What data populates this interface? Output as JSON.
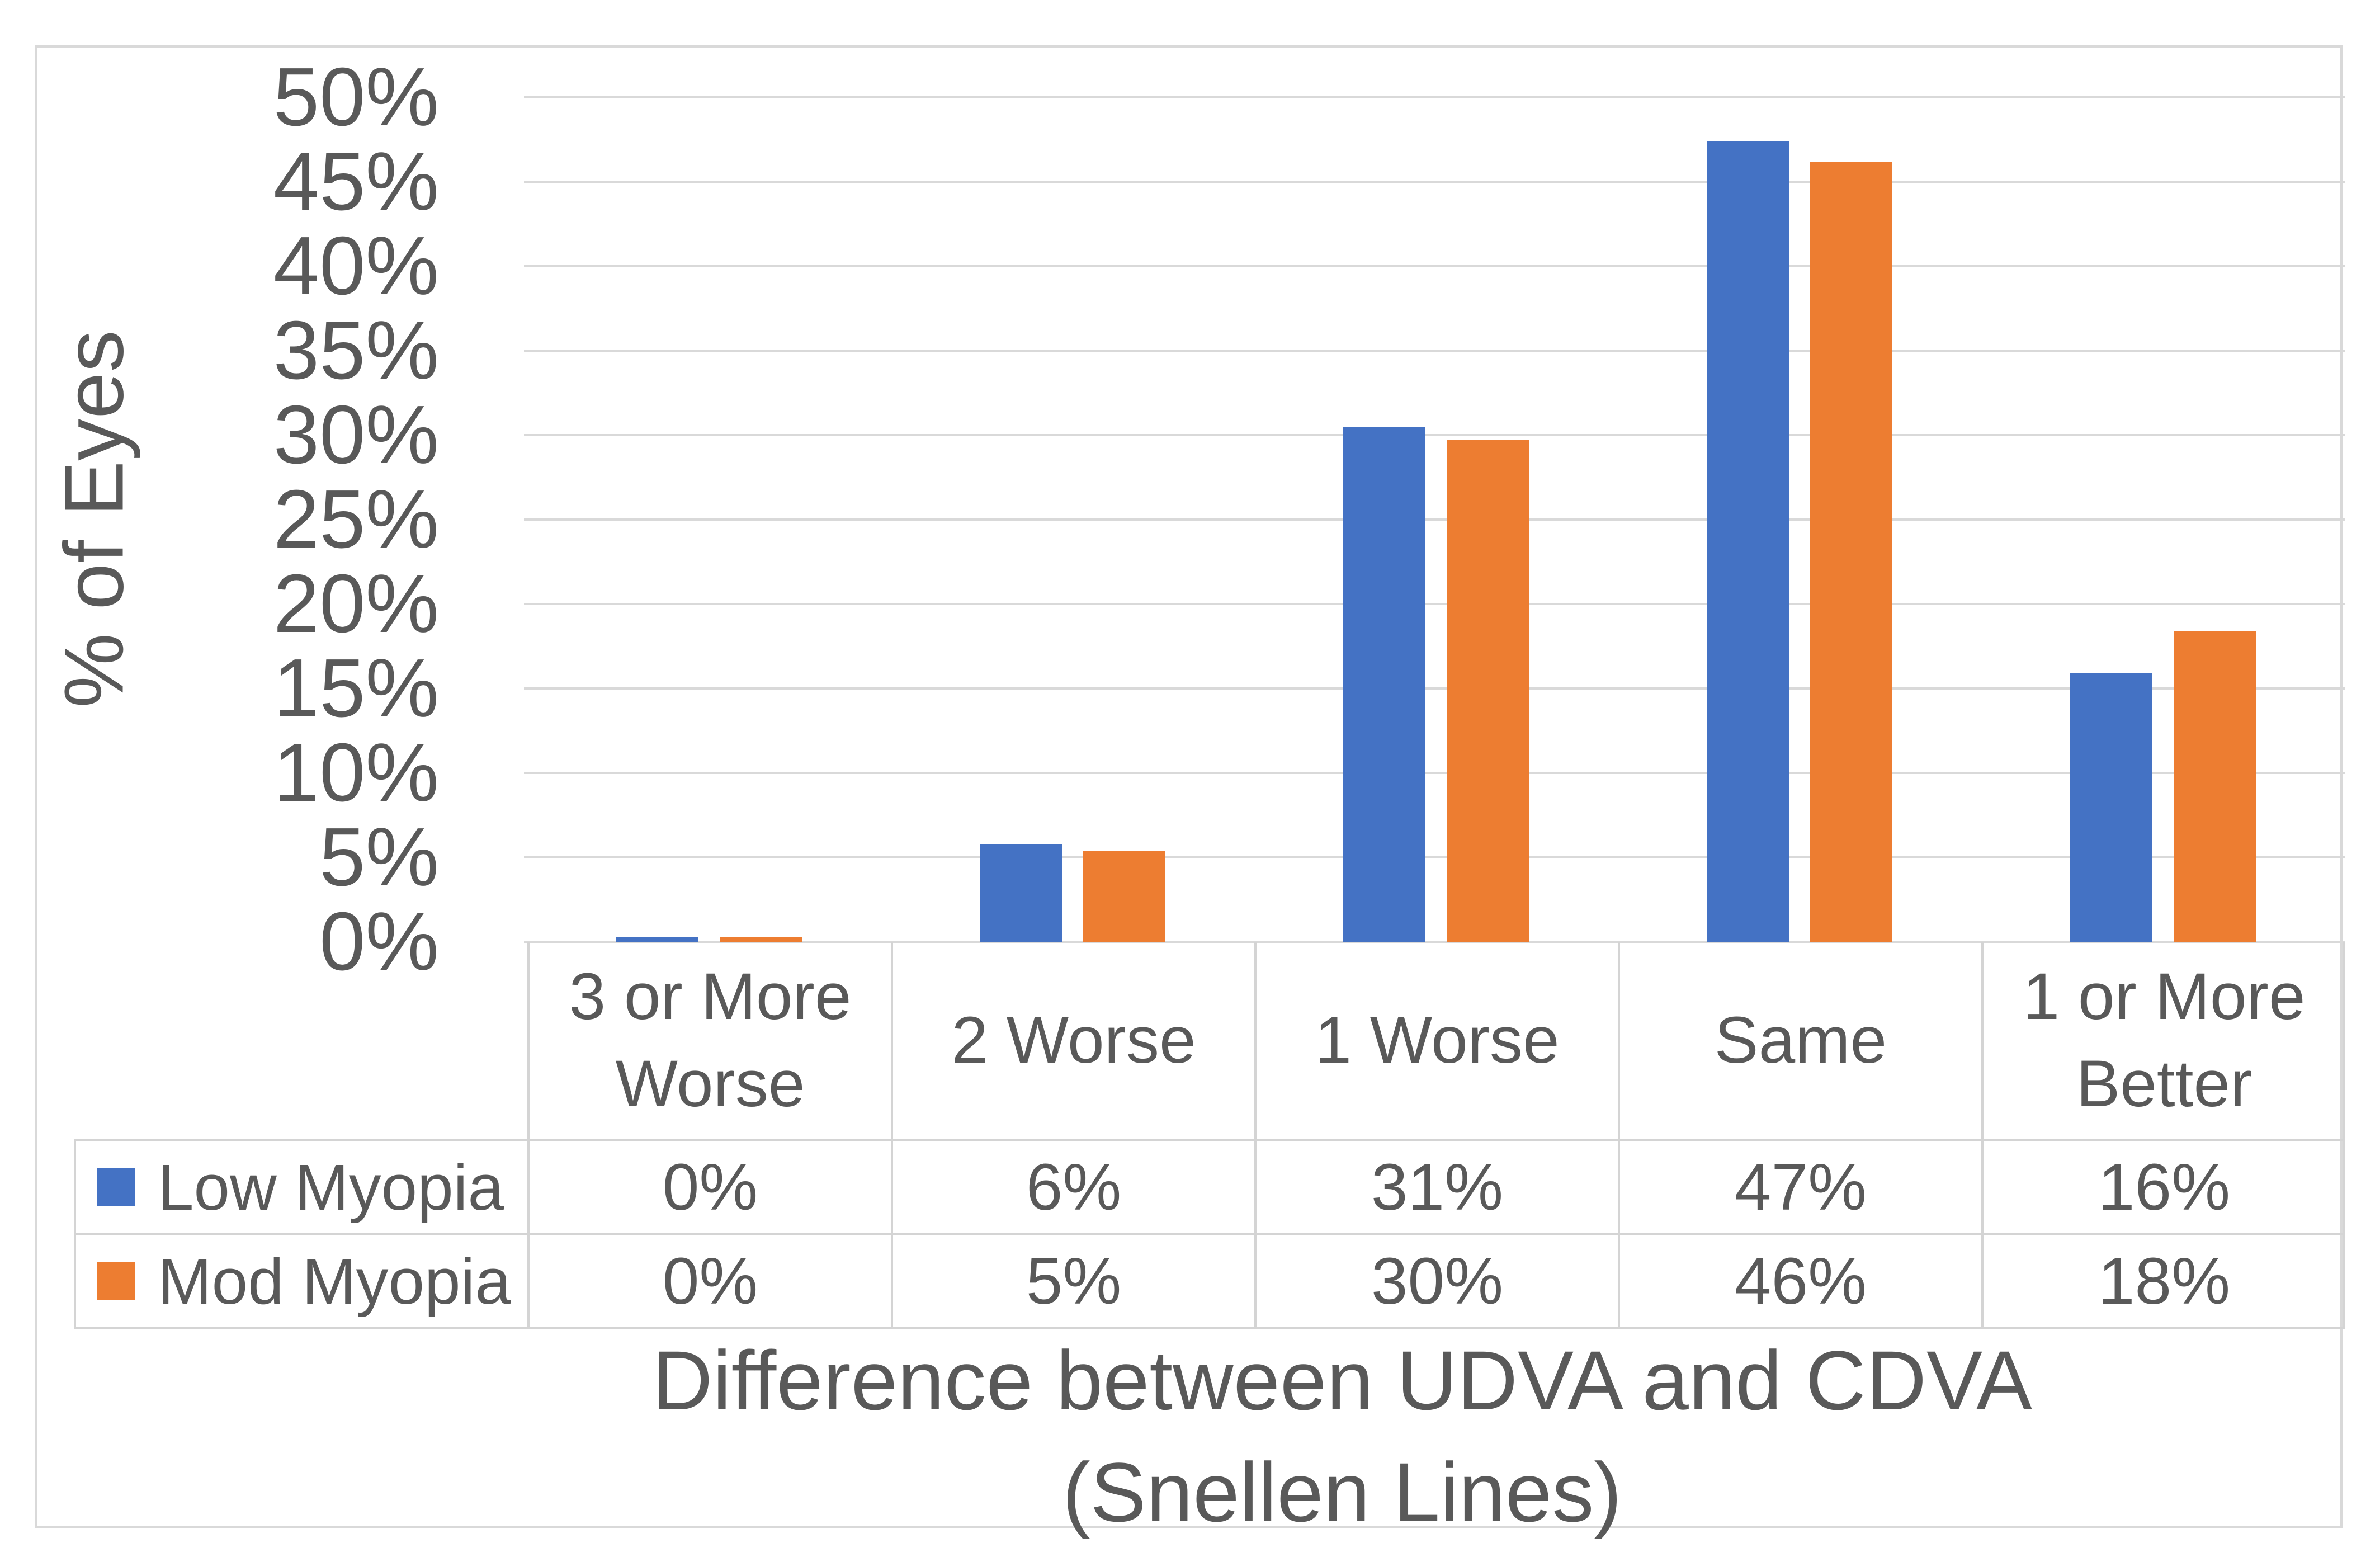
{
  "chart_data": {
    "type": "bar",
    "categories": [
      "3 or More Worse",
      "2 Worse",
      "1 Worse",
      "Same",
      "1 or More Better"
    ],
    "series": [
      {
        "name": "Low Myopia",
        "color": "#4472C4",
        "values": [
          0,
          6,
          31,
          47,
          16
        ]
      },
      {
        "name": "Mod Myopia",
        "color": "#ED7D31",
        "values": [
          0,
          5,
          30,
          46,
          18
        ]
      }
    ],
    "bar_heights_precise_pct": [
      [
        0.3,
        5.8,
        30.5,
        47.4,
        15.9
      ],
      [
        0.3,
        5.4,
        29.7,
        46.2,
        18.4
      ]
    ],
    "title": "",
    "xlabel": "Difference between UDVA and CDVA (Snellen Lines)",
    "ylabel": "% of Eyes",
    "ylim": [
      0,
      50
    ],
    "y_tick_step": 5,
    "grid": "horizontal",
    "legend_position": "data-table-left"
  },
  "ui": {
    "y_axis_title": "% of Eyes",
    "y_tick_labels": [
      "50%",
      "45%",
      "40%",
      "35%",
      "30%",
      "25%",
      "20%",
      "15%",
      "10%",
      "5%",
      "0%"
    ],
    "x_axis_title_line1": "Difference between UDVA and CDVA",
    "x_axis_title_line2": "(Snellen Lines)",
    "category_labels": [
      "3 or More Worse",
      "2 Worse",
      "1 Worse",
      "Same",
      "1 or More Better"
    ],
    "table_rows": [
      {
        "legend_label": "Low Myopia",
        "swatch_color": "#4472C4",
        "cell_labels": [
          "0%",
          "6%",
          "31%",
          "47%",
          "16%"
        ]
      },
      {
        "legend_label": "Mod Myopia",
        "swatch_color": "#ED7D31",
        "cell_labels": [
          "0%",
          "5%",
          "30%",
          "46%",
          "18%"
        ]
      }
    ]
  },
  "colors": {
    "series_blue": "#4472C4",
    "series_orange": "#ED7D31",
    "text": "#595959",
    "gridline": "#D9D9D9",
    "table_border": "#D4D4D4",
    "chart_border": "#D9D9D9",
    "background": "#FFFFFF"
  }
}
